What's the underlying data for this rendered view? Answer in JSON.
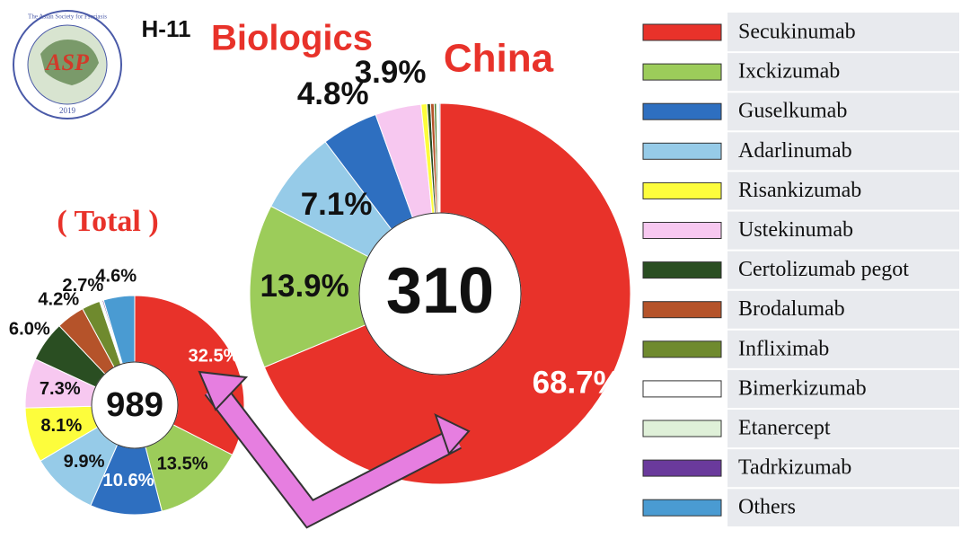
{
  "slide_id": "H-11",
  "title": "Biologics",
  "logo": {
    "name": "The Asian Society for Psoriasis",
    "abbr": "ASP",
    "year": "2019"
  },
  "chart_data": [
    {
      "type": "pie",
      "title": "( Total )",
      "total": 989,
      "categories": [
        "Secukinumab",
        "Ixckizumab",
        "Guselkumab",
        "Adarlinumab",
        "Risankizumab",
        "Ustekinumab",
        "Certolizumab pegot",
        "Brodalumab",
        "Infliximab",
        "Bimerkizumab",
        "Etanercept",
        "Tadrkizumab",
        "Others"
      ],
      "values": [
        32.5,
        13.5,
        10.6,
        9.9,
        8.1,
        7.3,
        6.0,
        4.2,
        2.7,
        0.2,
        0.2,
        0.2,
        4.6
      ],
      "value_labels": [
        "32.5%",
        "13.5%",
        "10.6%",
        "9.9%",
        "8.1%",
        "7.3%",
        "6.0%",
        "4.2%",
        "2.7%",
        null,
        null,
        null,
        "4.6%"
      ],
      "colors": [
        "#e8322a",
        "#9ccc5a",
        "#2e6fc0",
        "#96cbe8",
        "#fdfd3c",
        "#f7c8f0",
        "#2a4e22",
        "#b5532a",
        "#6f8a2e",
        "#ffffff",
        "#dff0d8",
        "#6a3a9c",
        "#4a9bd2"
      ],
      "legend": true
    },
    {
      "type": "pie",
      "title": "China",
      "total": 310,
      "categories": [
        "Secukinumab",
        "Ixckizumab",
        "Adarlinumab",
        "Guselkumab",
        "Ustekinumab",
        "Risankizumab",
        "Certolizumab pegot",
        "Brodalumab",
        "Infliximab",
        "Bimerkizumab",
        "Etanercept",
        "Tadrkizumab",
        "Others"
      ],
      "values": [
        68.7,
        13.9,
        7.1,
        4.8,
        3.9,
        0.5,
        0.3,
        0.3,
        0.2,
        0.1,
        0.1,
        0,
        0.1
      ],
      "value_labels": [
        "68.7%",
        "13.9%",
        "7.1%",
        "4.8%",
        "3.9%",
        null,
        null,
        null,
        null,
        null,
        null,
        null,
        null
      ],
      "colors": [
        "#e8322a",
        "#9ccc5a",
        "#96cbe8",
        "#2e6fc0",
        "#f7c8f0",
        "#fdfd3c",
        "#2a4e22",
        "#b5532a",
        "#4f7f2e",
        "#ffffff",
        "#dff0d8",
        "#6a3a9c",
        "#4a9bd2"
      ],
      "legend": false
    }
  ]
}
